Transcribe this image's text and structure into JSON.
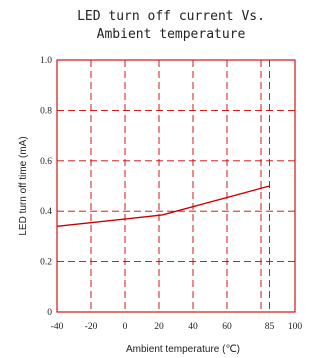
{
  "chart_data": {
    "type": "line",
    "title_lines": [
      "LED turn off current Vs.",
      "Ambient temperature"
    ],
    "xlabel": "Ambient temperature (℃)",
    "ylabel": "LED turn off time (mA)",
    "xlim": [
      -40,
      100
    ],
    "ylim": [
      0,
      1.0
    ],
    "x_ticks": [
      -40,
      -20,
      0,
      20,
      40,
      60,
      85,
      100
    ],
    "x_tick_labels": [
      "-40",
      "-20",
      "0",
      "20",
      "40",
      "60",
      "85",
      "100"
    ],
    "y_ticks": [
      0,
      0.2,
      0.4,
      0.6,
      0.8,
      1.0
    ],
    "y_tick_labels": [
      "0",
      "0.2",
      "0.4",
      "0.6",
      "0.8",
      "1.0"
    ],
    "x_grid": [
      -20,
      0,
      20,
      40,
      60,
      80,
      85
    ],
    "grid": true,
    "colors": {
      "axis": "#cc0000",
      "grid": "#cc0000",
      "series": "#cc0000",
      "text": "#222222"
    },
    "series": [
      {
        "x": [
          -40,
          22,
          85
        ],
        "y": [
          0.34,
          0.385,
          0.5
        ]
      }
    ]
  }
}
